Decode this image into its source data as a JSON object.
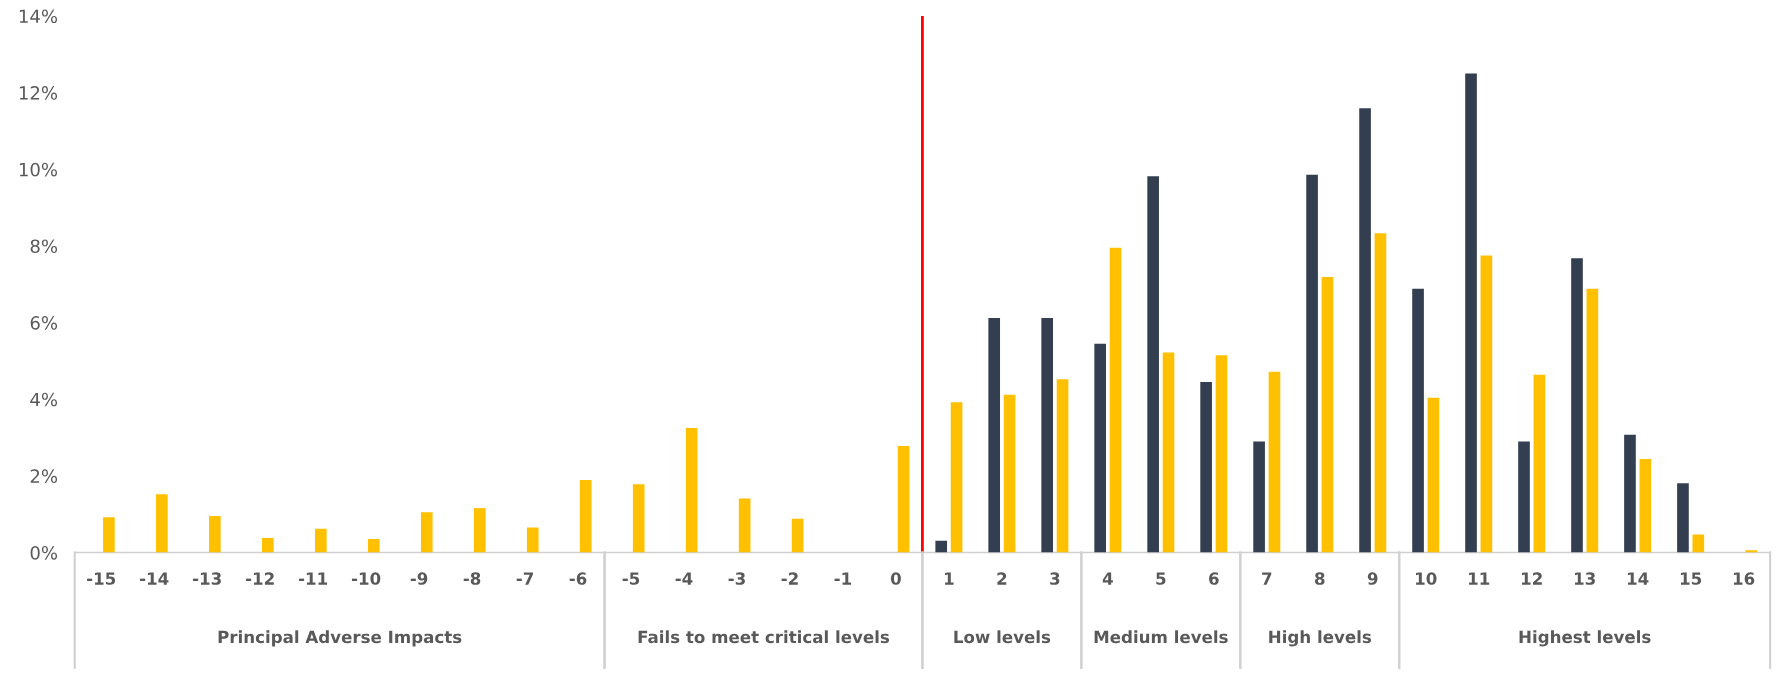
{
  "chart_data": {
    "type": "bar",
    "x": [
      -15,
      -14,
      -13,
      -12,
      -11,
      -10,
      -9,
      -8,
      -7,
      -6,
      -5,
      -4,
      -3,
      -2,
      -1,
      0,
      1,
      2,
      3,
      4,
      5,
      6,
      7,
      8,
      9,
      10,
      11,
      12,
      13,
      14,
      15,
      16
    ],
    "xlim": [
      -15.5,
      16.5
    ],
    "xticks": [
      -15,
      -14,
      -13,
      -12,
      -11,
      -10,
      -9,
      -8,
      -7,
      -6,
      -5,
      -4,
      -3,
      -2,
      -1,
      0,
      1,
      2,
      3,
      4,
      5,
      6,
      7,
      8,
      9,
      10,
      11,
      12,
      13,
      14,
      15,
      16
    ],
    "ylim": [
      0,
      14
    ],
    "yticks": [
      {
        "value": 0,
        "label": "0%"
      },
      {
        "value": 2,
        "label": "2%"
      },
      {
        "value": 4,
        "label": "4%"
      },
      {
        "value": 6,
        "label": "6%"
      },
      {
        "value": 8,
        "label": "8%"
      },
      {
        "value": 10,
        "label": "10%"
      },
      {
        "value": 12,
        "label": "12%"
      },
      {
        "value": 14,
        "label": "14%"
      }
    ],
    "series": [
      {
        "color": "#333f50",
        "values": [
          0,
          0,
          0,
          0,
          0,
          0,
          0,
          0,
          0,
          0,
          0,
          0,
          0,
          0,
          0,
          0,
          0.31,
          6.12,
          6.12,
          5.45,
          9.82,
          4.45,
          2.9,
          9.86,
          11.59,
          6.88,
          12.5,
          2.9,
          7.68,
          3.07,
          1.81,
          0
        ]
      },
      {
        "color": "#ffc000",
        "values": [
          0.92,
          1.52,
          0.95,
          0.38,
          0.62,
          0.35,
          1.05,
          1.16,
          0.65,
          1.89,
          1.78,
          3.25,
          1.41,
          0.88,
          0,
          2.78,
          3.92,
          4.12,
          4.52,
          7.95,
          5.22,
          5.15,
          4.72,
          7.19,
          8.33,
          4.04,
          7.75,
          4.64,
          6.88,
          2.44,
          0.47,
          0.06
        ]
      }
    ],
    "ref_lines": [
      {
        "axis": "x",
        "value": 0.5,
        "color": "#ff0000"
      }
    ],
    "annotations": [
      "Principal Adverse Impacts",
      "Fails to meet critical levels",
      "Low levels",
      "Medium levels",
      "High levels",
      "Highest levels"
    ],
    "grid": false,
    "legend": false
  }
}
